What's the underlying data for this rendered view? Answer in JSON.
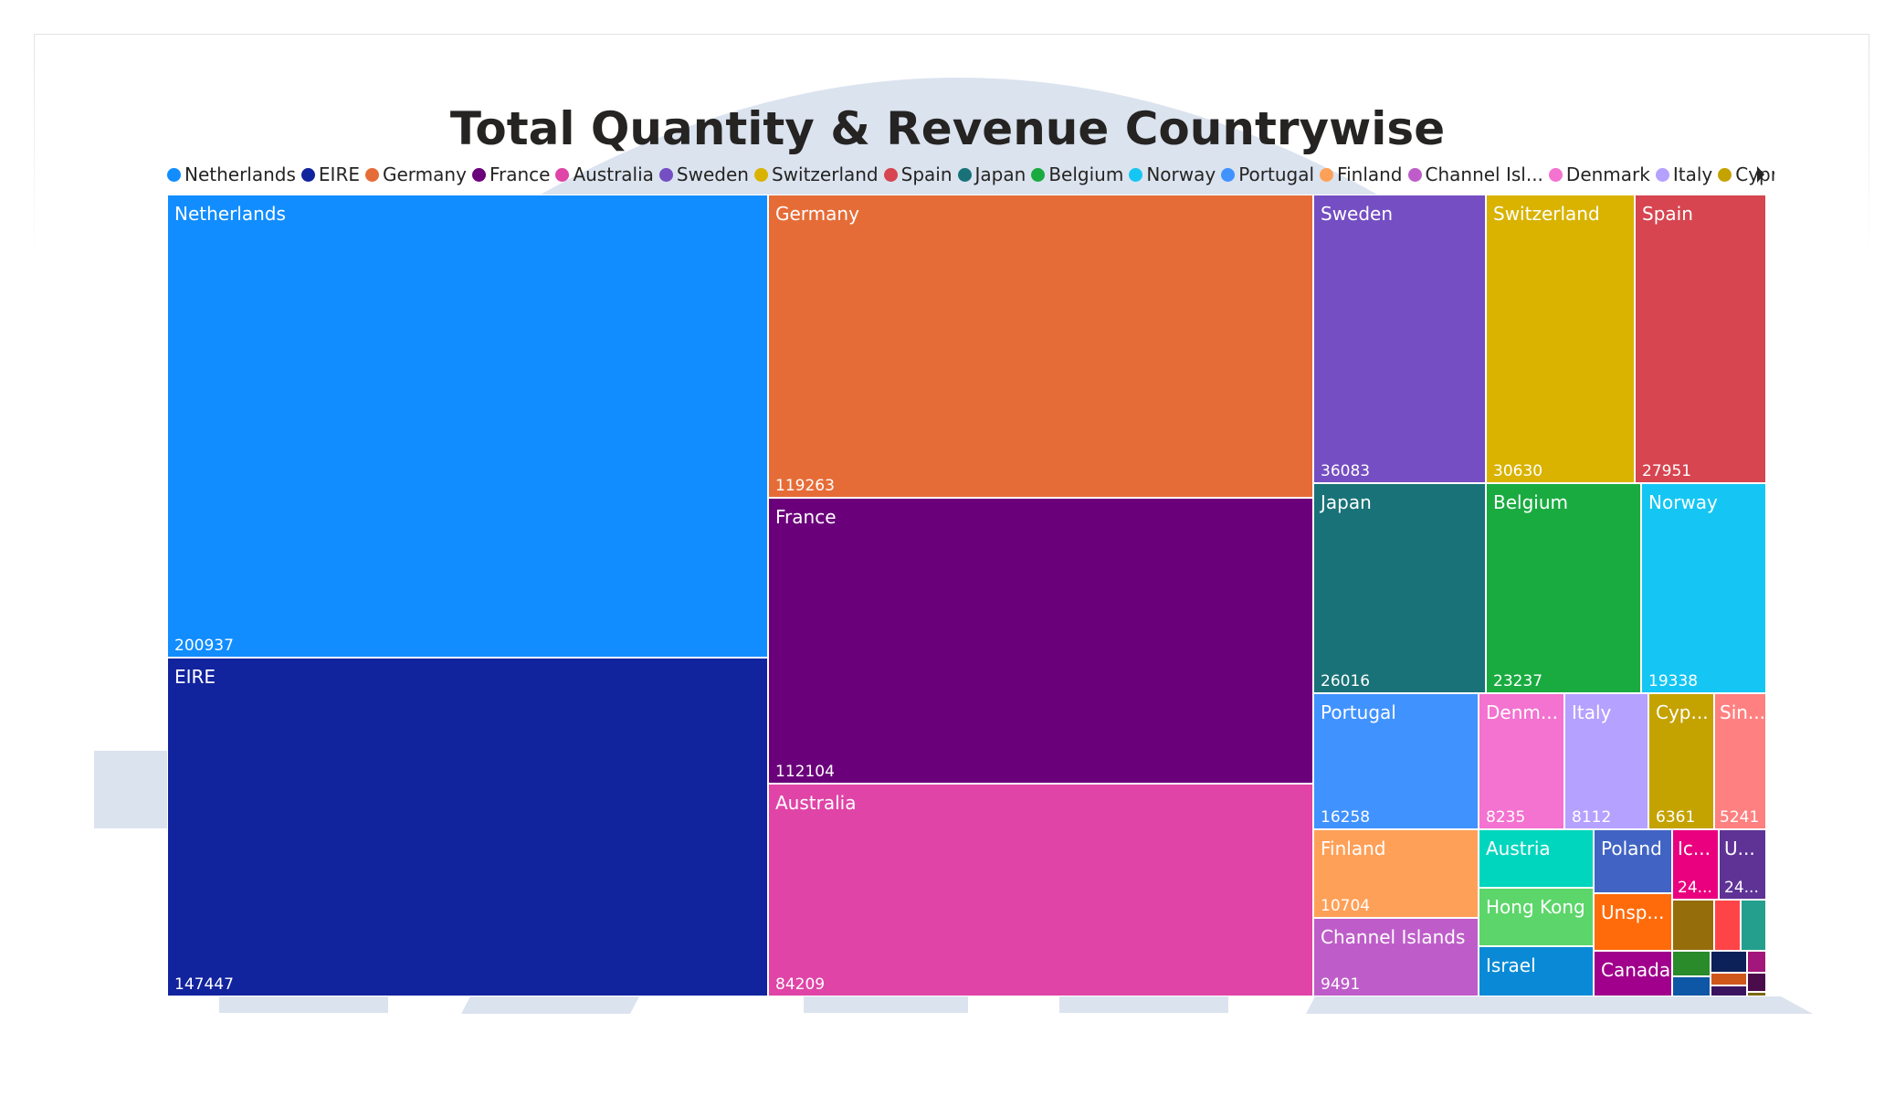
{
  "chart_data": {
    "type": "treemap",
    "title": "Total Quantity & Revenue Countrywise",
    "legend": {
      "position": "top-left",
      "entries": [
        {
          "label": "Netherlands",
          "color": "#118DFF"
        },
        {
          "label": "EIRE",
          "color": "#12239E"
        },
        {
          "label": "Germany",
          "color": "#E66C37"
        },
        {
          "label": "France",
          "color": "#6B007B"
        },
        {
          "label": "Australia",
          "color": "#E044A7"
        },
        {
          "label": "Sweden",
          "color": "#744EC2"
        },
        {
          "label": "Switzerland",
          "color": "#D9B300"
        },
        {
          "label": "Spain",
          "color": "#D64550"
        },
        {
          "label": "Japan",
          "color": "#197278"
        },
        {
          "label": "Belgium",
          "color": "#1AAB40"
        },
        {
          "label": "Norway",
          "color": "#15C6F4"
        },
        {
          "label": "Portugal",
          "color": "#4092FF"
        },
        {
          "label": "Finland",
          "color": "#FFA058"
        },
        {
          "label": "Channel Isl...",
          "color": "#BE5DC9"
        },
        {
          "label": "Denmark",
          "color": "#F472D0"
        },
        {
          "label": "Italy",
          "color": "#B5A1FF"
        },
        {
          "label": "Cyprus",
          "color": "#C4A200"
        }
      ]
    },
    "tiles": [
      {
        "name": "Netherlands",
        "value": 200937,
        "color": "#118DFF"
      },
      {
        "name": "EIRE",
        "value": 147447,
        "color": "#12239E"
      },
      {
        "name": "Germany",
        "value": 119263,
        "color": "#E66C37"
      },
      {
        "name": "France",
        "value": 112104,
        "color": "#6B007B"
      },
      {
        "name": "Australia",
        "value": 84209,
        "color": "#E044A7"
      },
      {
        "name": "Sweden",
        "value": 36083,
        "color": "#744EC2"
      },
      {
        "name": "Switzerland",
        "value": 30630,
        "color": "#D9B300"
      },
      {
        "name": "Spain",
        "value": 27951,
        "color": "#D64550"
      },
      {
        "name": "Japan",
        "value": 26016,
        "color": "#197278"
      },
      {
        "name": "Belgium",
        "value": 23237,
        "color": "#1AAB40"
      },
      {
        "name": "Norway",
        "value": 19338,
        "color": "#15C6F4"
      },
      {
        "name": "Portugal",
        "value": 16258,
        "color": "#4092FF"
      },
      {
        "name": "Denm...",
        "value": 8235,
        "color": "#F472D0"
      },
      {
        "name": "Italy",
        "value": 8112,
        "color": "#B5A1FF"
      },
      {
        "name": "Cyp...",
        "value": 6361,
        "color": "#C4A200"
      },
      {
        "name": "Sin...",
        "value": 5241,
        "color": "#FF8080"
      },
      {
        "name": "Finland",
        "value": 10704,
        "color": "#FFA058"
      },
      {
        "name": "Channel Islands",
        "value": 9491,
        "color": "#BE5DC9"
      },
      {
        "name": "Austria",
        "value": null,
        "color": "#00D6BD"
      },
      {
        "name": "Hong Kong",
        "value": null,
        "color": "#5CD66A"
      },
      {
        "name": "Israel",
        "value": null,
        "color": "#0A8AD6"
      },
      {
        "name": "Poland",
        "value": null,
        "color": "#4164C4"
      },
      {
        "name": "Unsp...",
        "value": null,
        "color": "#FF6B0A"
      },
      {
        "name": "Canada",
        "value": null,
        "color": "#A0008B"
      },
      {
        "name": "Ic...",
        "value_label": "24...",
        "color": "#EA007F"
      },
      {
        "name": "U...",
        "value_label": "24...",
        "color": "#5F3396"
      },
      {
        "name": "",
        "value": null,
        "color": "#956D0A"
      },
      {
        "name": "",
        "value": null,
        "color": "#FF4448"
      },
      {
        "name": "",
        "value": null,
        "color": "#249E8D"
      },
      {
        "name": "",
        "value": null,
        "color": "#2A8B2A"
      },
      {
        "name": "",
        "value": null,
        "color": "#0B2158"
      },
      {
        "name": "",
        "value": null,
        "color": "#A3177A"
      },
      {
        "name": "",
        "value": null,
        "color": "#0E56A6"
      },
      {
        "name": "",
        "value": null,
        "color": "#D0571B"
      },
      {
        "name": "",
        "value": null,
        "color": "#3B1460"
      },
      {
        "name": "",
        "value": null,
        "color": "#4B0C4C"
      },
      {
        "name": "",
        "value": null,
        "color": "#7A6A10"
      }
    ]
  }
}
